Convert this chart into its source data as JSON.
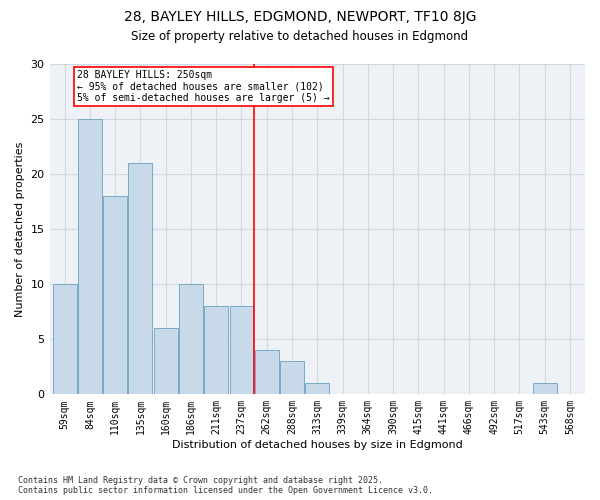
{
  "title_line1": "28, BAYLEY HILLS, EDGMOND, NEWPORT, TF10 8JG",
  "title_line2": "Size of property relative to detached houses in Edgmond",
  "xlabel": "Distribution of detached houses by size in Edgmond",
  "ylabel": "Number of detached properties",
  "categories": [
    "59sqm",
    "84sqm",
    "110sqm",
    "135sqm",
    "160sqm",
    "186sqm",
    "211sqm",
    "237sqm",
    "262sqm",
    "288sqm",
    "313sqm",
    "339sqm",
    "364sqm",
    "390sqm",
    "415sqm",
    "441sqm",
    "466sqm",
    "492sqm",
    "517sqm",
    "543sqm",
    "568sqm"
  ],
  "values": [
    10,
    25,
    18,
    21,
    6,
    10,
    8,
    8,
    4,
    3,
    1,
    0,
    0,
    0,
    0,
    0,
    0,
    0,
    0,
    1,
    0
  ],
  "bar_color": "#c8daea",
  "bar_edge_color": "#7aaac8",
  "grid_color": "#d0d8e0",
  "vline_x_index": 7.5,
  "vline_color": "red",
  "annotation_text": "28 BAYLEY HILLS: 250sqm\n← 95% of detached houses are smaller (102)\n5% of semi-detached houses are larger (5) →",
  "annotation_box_color": "white",
  "annotation_box_edge_color": "red",
  "ylim": [
    0,
    30
  ],
  "yticks": [
    0,
    5,
    10,
    15,
    20,
    25,
    30
  ],
  "footer_text": "Contains HM Land Registry data © Crown copyright and database right 2025.\nContains public sector information licensed under the Open Government Licence v3.0.",
  "bg_color": "#ffffff",
  "plot_bg_color": "#eef2f7"
}
